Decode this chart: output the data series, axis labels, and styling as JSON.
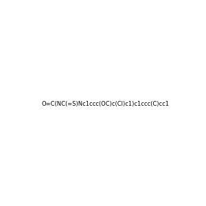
{
  "smiles": "O=C(NC(=S)Nc1ccc(OC)c(Cl)c1)c1ccc(C)cc1",
  "image_size": 300,
  "background_color": "#f0f0f0",
  "title": ""
}
